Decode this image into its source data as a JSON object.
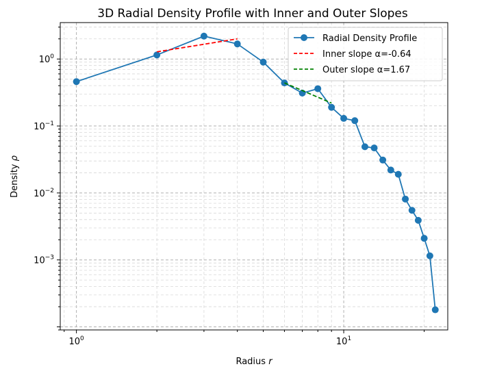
{
  "chart_data": {
    "type": "line",
    "title": "3D Radial Density Profile with Inner and Outer Slopes",
    "xlabel": "Radius",
    "xlabel_var": "r",
    "ylabel": "Density",
    "ylabel_var": "ρ",
    "xscale": "log",
    "yscale": "log",
    "xlim": [
      0.87,
      24.5
    ],
    "ylim": [
      9e-05,
      3.5
    ],
    "grid": true,
    "legend_position": "top-right",
    "x_ticks": [
      {
        "base": "10",
        "exp": "0",
        "value": 1
      },
      {
        "base": "10",
        "exp": "1",
        "value": 10
      }
    ],
    "y_ticks": [
      {
        "base": "10",
        "exp": "0",
        "value": 1
      },
      {
        "base": "10",
        "exp": "−1",
        "value": 0.1
      },
      {
        "base": "10",
        "exp": "−2",
        "value": 0.01
      },
      {
        "base": "10",
        "exp": "−3",
        "value": 0.001
      }
    ],
    "series": [
      {
        "name": "Radial Density Profile",
        "color": "#1f77b4",
        "style": "solid-with-markers",
        "x": [
          1,
          2,
          3,
          4,
          5,
          6,
          7,
          8,
          9,
          10,
          11,
          12,
          13,
          14,
          15,
          16,
          17,
          18,
          19,
          20,
          21,
          22
        ],
        "y": [
          0.46,
          1.15,
          2.2,
          1.68,
          0.9,
          0.44,
          0.31,
          0.36,
          0.19,
          0.13,
          0.12,
          0.049,
          0.047,
          0.031,
          0.022,
          0.019,
          0.0081,
          0.0055,
          0.0039,
          0.0021,
          0.00115,
          0.00018
        ]
      },
      {
        "name": "Inner slope α=-0.64",
        "color": "#ff0000",
        "style": "dashed",
        "x": [
          2,
          4
        ],
        "y": [
          1.28,
          2.0
        ]
      },
      {
        "name": "Outer slope α=1.67",
        "color": "#008000",
        "style": "dashed",
        "x": [
          6,
          9
        ],
        "y": [
          0.44,
          0.22
        ]
      }
    ]
  }
}
